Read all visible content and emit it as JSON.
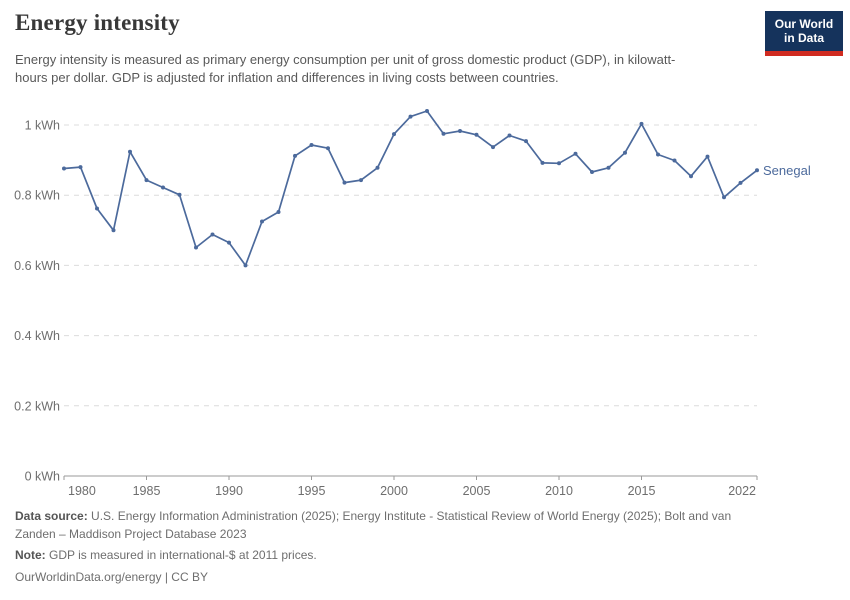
{
  "header": {
    "title": "Energy intensity",
    "subtitle": "Energy intensity is measured as primary energy consumption per unit of gross domestic product (GDP), in kilowatt-hours per dollar. GDP is adjusted for inflation and differences in living costs between countries."
  },
  "logo": {
    "line1": "Our World",
    "line2": "in Data",
    "bg_color": "#15335c",
    "stripe_color": "#d02b20"
  },
  "chart_data": {
    "type": "line",
    "title": "Energy intensity",
    "unit": "kWh",
    "x": [
      1980,
      1981,
      1982,
      1983,
      1984,
      1985,
      1986,
      1987,
      1988,
      1989,
      1990,
      1991,
      1992,
      1993,
      1994,
      1995,
      1996,
      1997,
      1998,
      1999,
      2000,
      2001,
      2002,
      2003,
      2004,
      2005,
      2006,
      2007,
      2008,
      2009,
      2010,
      2011,
      2012,
      2013,
      2014,
      2015,
      2016,
      2017,
      2018,
      2019,
      2020,
      2021,
      2022
    ],
    "series": [
      {
        "name": "Senegal",
        "color": "#4c6a9c",
        "values": [
          0.876,
          0.88,
          0.762,
          0.7,
          0.924,
          0.843,
          0.822,
          0.801,
          0.651,
          0.688,
          0.665,
          0.6,
          0.725,
          0.752,
          0.912,
          0.943,
          0.934,
          0.836,
          0.843,
          0.878,
          0.974,
          1.024,
          1.04,
          0.975,
          0.983,
          0.972,
          0.937,
          0.97,
          0.954,
          0.892,
          0.891,
          0.918,
          0.866,
          0.878,
          0.921,
          1.003,
          0.916,
          0.899,
          0.854,
          0.91,
          0.794,
          0.835,
          0.871
        ]
      }
    ],
    "x_ticks": [
      1980,
      1985,
      1990,
      1995,
      2000,
      2005,
      2010,
      2015,
      2022
    ],
    "y_ticks": [
      0,
      0.2,
      0.4,
      0.6,
      0.8,
      1
    ],
    "y_tick_labels": [
      "0 kWh",
      "0.2 kWh",
      "0.4 kWh",
      "0.6 kWh",
      "0.8 kWh",
      "1 kWh"
    ],
    "xlim": [
      1980,
      2022
    ],
    "ylim": [
      0,
      1.05
    ],
    "grid": "horizontal-dashed",
    "legend_position": "end-of-line",
    "marker": "circle"
  },
  "footer": {
    "data_source_label": "Data source:",
    "data_source_line1": "U.S. Energy Information Administration (2025); Energy Institute - Statistical Review of World Energy (2025); Bolt and van",
    "data_source_line2": "Zanden – Maddison Project Database 2023",
    "note_label": "Note:",
    "note_text": "GDP is measured in international-$ at 2011 prices.",
    "attribution": "OurWorldinData.org/energy | CC BY"
  },
  "colors": {
    "line": "#4c6a9c",
    "grid": "#dcdcdc",
    "axis": "#9a9a9a",
    "tick_text": "#6e6e6e",
    "title_text": "#383838",
    "subtitle_text": "#595959"
  }
}
